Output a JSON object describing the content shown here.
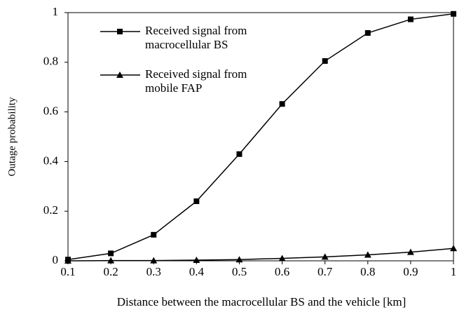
{
  "chart_data": {
    "type": "line",
    "xlabel": "Distance between the macrocellular BS and the vehicle [km]",
    "ylabel": "Outage probability",
    "x": [
      0.1,
      0.2,
      0.3,
      0.4,
      0.5,
      0.6,
      0.7,
      0.8,
      0.9,
      1
    ],
    "series": [
      {
        "name": "Received signal from macrocellular BS",
        "color": "#000000",
        "marker": "square",
        "values": [
          0.005,
          0.03,
          0.105,
          0.24,
          0.43,
          0.632,
          0.805,
          0.918,
          0.973,
          0.995
        ]
      },
      {
        "name": "Received signal from mobile FAP",
        "color": "#000000",
        "marker": "triangle",
        "values": [
          0,
          0.001,
          0.001,
          0.003,
          0.005,
          0.01,
          0.016,
          0.024,
          0.035,
          0.05
        ]
      }
    ],
    "xlim": [
      0.1,
      1
    ],
    "xticks": [
      0.1,
      0.2,
      0.3,
      0.4,
      0.5,
      0.6,
      0.7,
      0.8,
      0.9,
      1
    ],
    "ylim": [
      0,
      1
    ],
    "yticks": [
      0,
      0.2,
      0.4,
      0.6,
      0.8,
      1
    ],
    "grid": false,
    "legend": "upper left"
  }
}
